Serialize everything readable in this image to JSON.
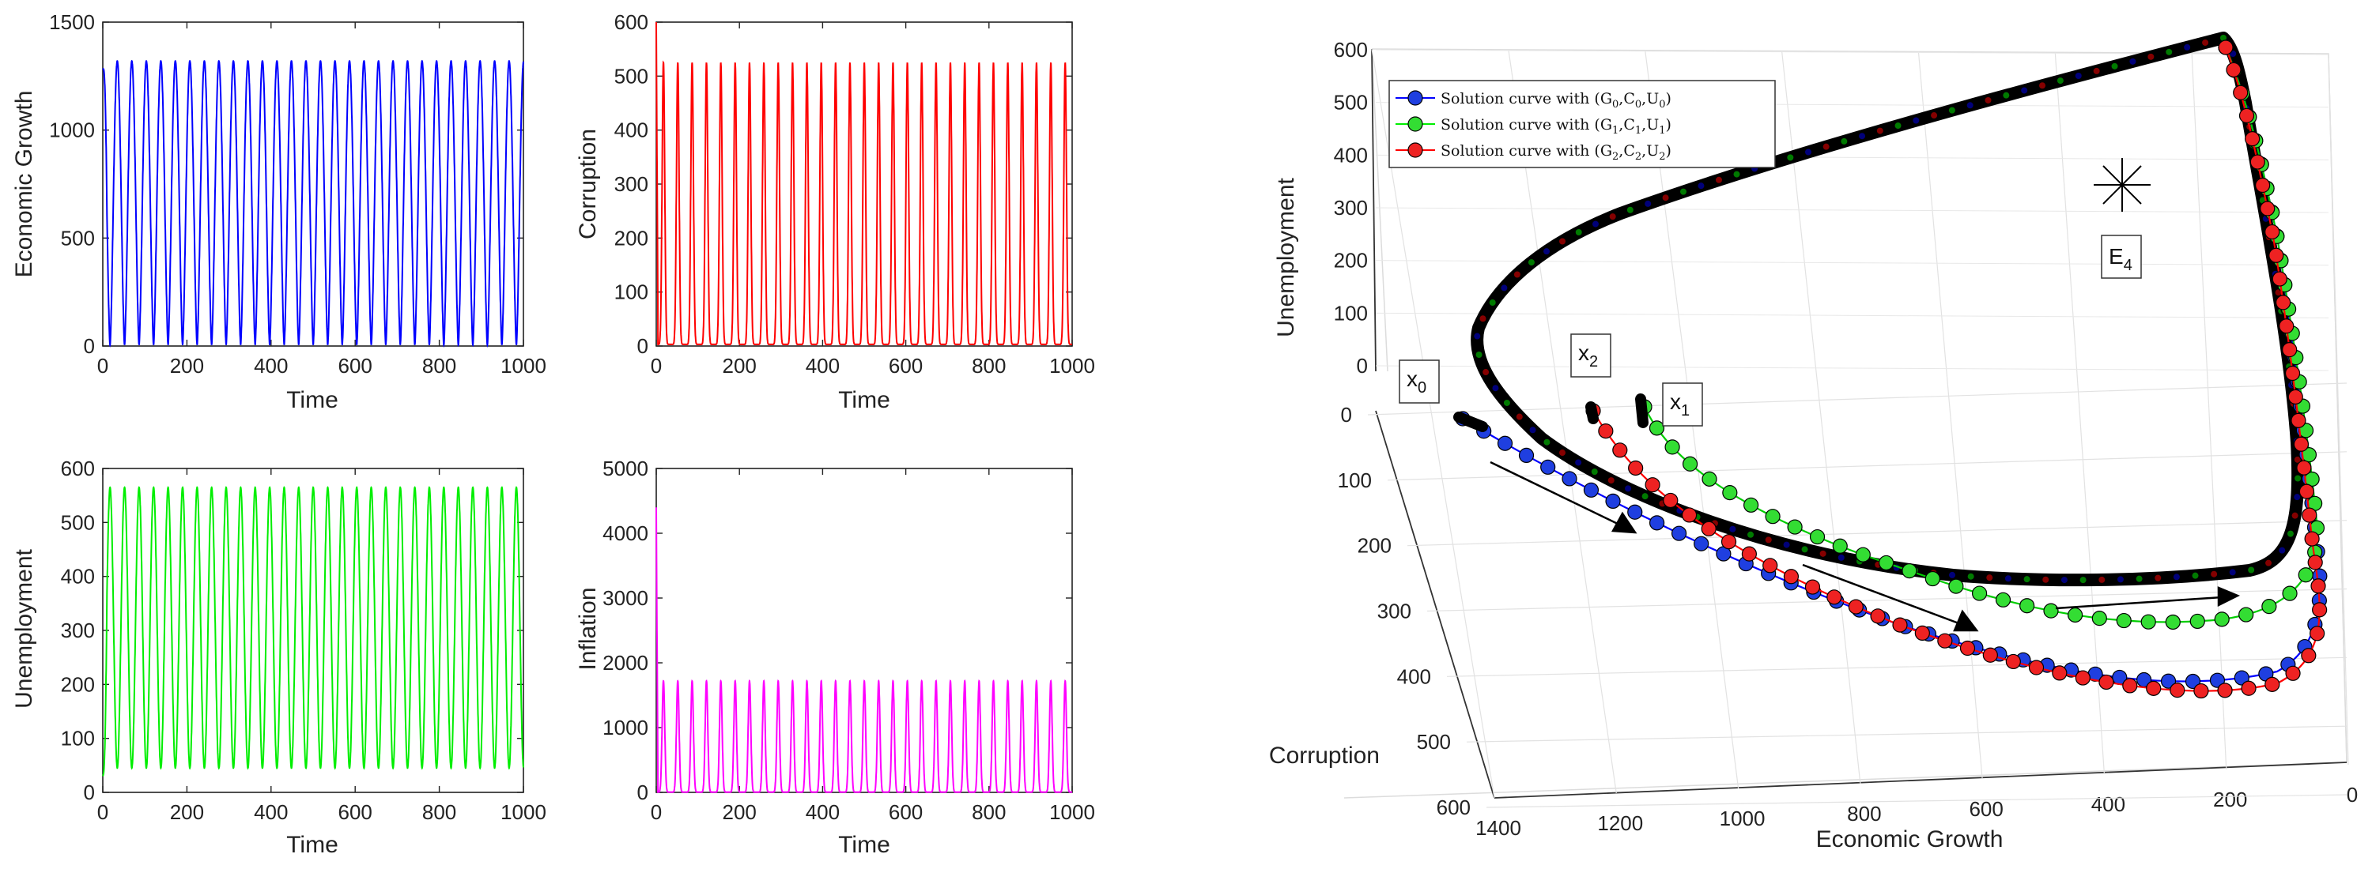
{
  "chart_data": [
    {
      "type": "line",
      "id": "g",
      "xlabel": "Time",
      "ylabel": "Economic Growth",
      "xlim": [
        0,
        1000
      ],
      "ylim": [
        0,
        1500
      ],
      "xticks": [
        "0",
        "200",
        "400",
        "600",
        "800",
        "1000"
      ],
      "yticks": [
        "0",
        "500",
        "1000",
        "1500"
      ],
      "color": "#0000ff",
      "series": {
        "name": "Economic Growth",
        "period": 34.5,
        "start": 1280,
        "min": 5,
        "max": 1320
      }
    },
    {
      "type": "line",
      "id": "c",
      "xlabel": "Time",
      "ylabel": "Corruption",
      "xlim": [
        0,
        1000
      ],
      "ylim": [
        0,
        600
      ],
      "xticks": [
        "0",
        "200",
        "400",
        "600",
        "800",
        "1000"
      ],
      "yticks": [
        "0",
        "100",
        "200",
        "300",
        "400",
        "500",
        "600"
      ],
      "color": "#ff0000",
      "series": {
        "name": "Corruption",
        "period": 34.5,
        "start": 600,
        "min": 3,
        "max": 525
      }
    },
    {
      "type": "line",
      "id": "u",
      "xlabel": "Time",
      "ylabel": "Unemployment",
      "xlim": [
        0,
        1000
      ],
      "ylim": [
        0,
        600
      ],
      "xticks": [
        "0",
        "200",
        "400",
        "600",
        "800",
        "1000"
      ],
      "yticks": [
        "0",
        "100",
        "200",
        "300",
        "400",
        "500",
        "600"
      ],
      "color": "#00ee00",
      "series": {
        "name": "Unemployment",
        "period": 34.5,
        "start": 30,
        "min": 45,
        "max": 565
      }
    },
    {
      "type": "line",
      "id": "i",
      "xlabel": "Time",
      "ylabel": "Inflation",
      "xlim": [
        0,
        1000
      ],
      "ylim": [
        0,
        5000
      ],
      "xticks": [
        "0",
        "200",
        "400",
        "600",
        "800",
        "1000"
      ],
      "yticks": [
        "0",
        "1000",
        "2000",
        "3000",
        "4000",
        "5000"
      ],
      "color": "#ff00ff",
      "series": {
        "name": "Inflation",
        "period": 34.5,
        "start": 4400,
        "min": 5,
        "max": 1720
      }
    },
    {
      "type": "line3d",
      "id": "phase",
      "xlabel": "Economic Growth",
      "ylabel": "Corruption",
      "zlabel": "Unemployment",
      "xticks": [
        "1400",
        "1200",
        "1000",
        "800",
        "600",
        "400",
        "200",
        "0"
      ],
      "yticks": [
        "0",
        "100",
        "200",
        "300",
        "400",
        "500",
        "600"
      ],
      "zticks": [
        "600",
        "500",
        "400",
        "300",
        "200",
        "100",
        "0"
      ],
      "legend": [
        {
          "label": "Solution curve with (G",
          "sub0": "0",
          "sep1": ",C",
          "sub1": "0",
          "sep2": ",U",
          "sub2": "0",
          "end": ")",
          "color": "#0000ff"
        },
        {
          "label": "Solution curve with (G",
          "sub0": "1",
          "sep1": ",C",
          "sub1": "1",
          "sep2": ",U",
          "sub2": "1",
          "end": ")",
          "color": "#00ee00"
        },
        {
          "label": "Solution curve with (G",
          "sub0": "2",
          "sep1": ",C",
          "sub1": "2",
          "sep2": ",U",
          "sub2": "2",
          "end": ")",
          "color": "#ff0000"
        }
      ],
      "annotations": {
        "e4": "E",
        "e4_sub": "4",
        "x0": "x",
        "x0_sub": "0",
        "x1": "x",
        "x1_sub": "1",
        "x2": "x",
        "x2_sub": "2"
      }
    }
  ]
}
